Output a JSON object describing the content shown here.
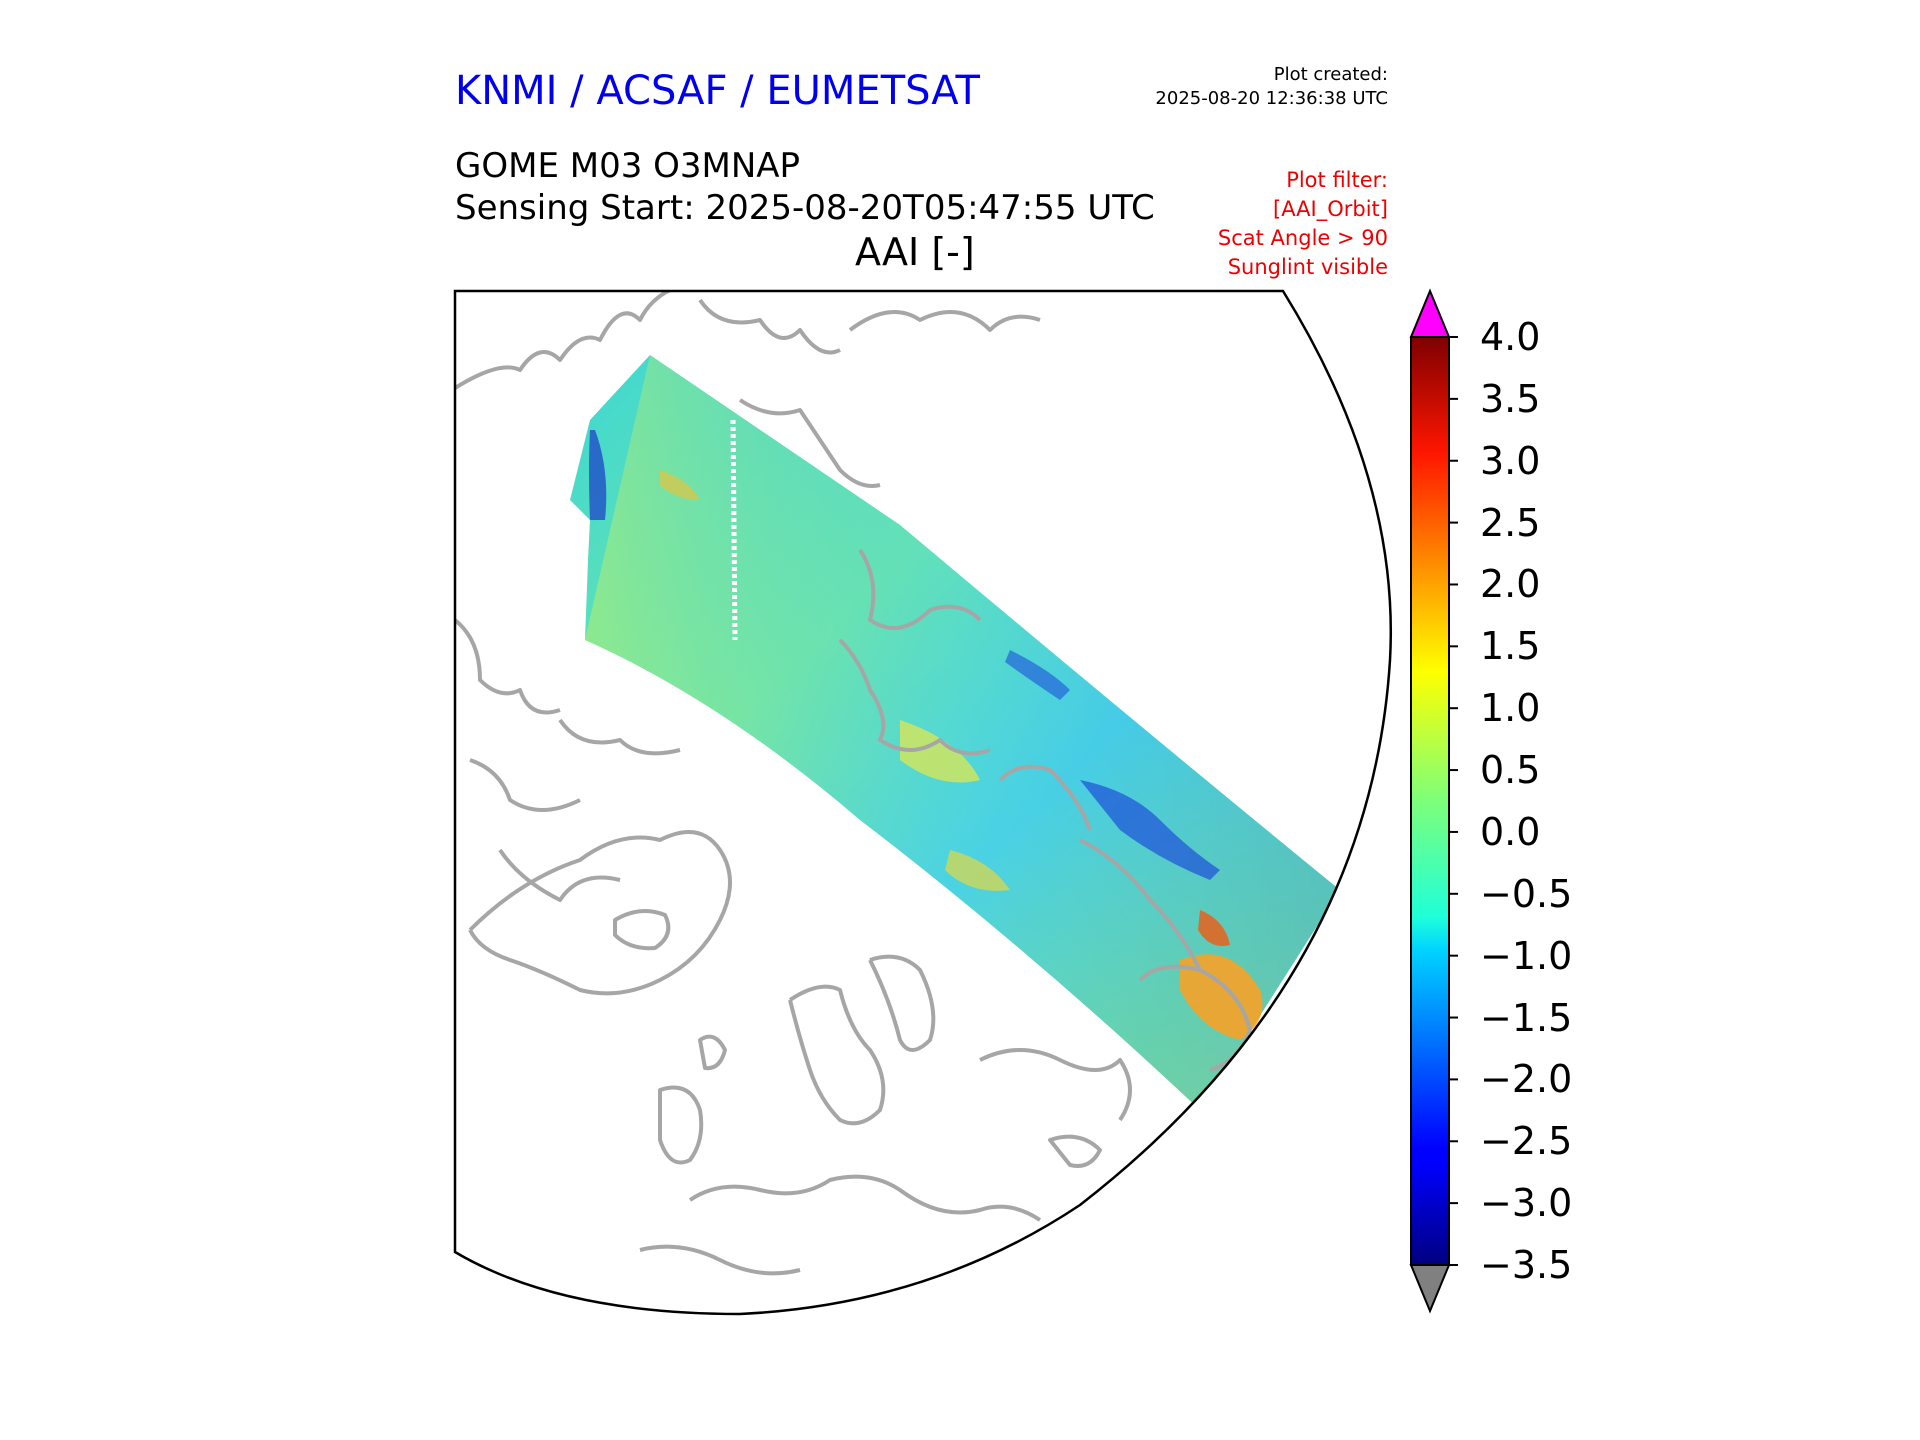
{
  "header": {
    "organization": "KNMI / ACSAF / EUMETSAT",
    "plot_created_label": "Plot created:",
    "plot_created_time": "2025-08-20 12:36:38 UTC",
    "product": "GOME M03 O3MNAP",
    "sensing_start": "Sensing Start: 2025-08-20T05:47:55 UTC",
    "variable": "AAI [-]",
    "filter_lines": [
      "Plot filter:",
      "[AAI_Orbit]",
      "Scat Angle > 90",
      "Sunglint visible"
    ]
  },
  "colors": {
    "header_org": "#0000ee",
    "filter_text": "#ee0000",
    "coastline": "#a6a6a6",
    "over_max": "#ff00ff",
    "under_min": "#808080"
  },
  "colorbar": {
    "colormap": "jet",
    "min": -3.5,
    "max": 4.0,
    "ticks": [
      "4.0",
      "3.5",
      "3.0",
      "2.5",
      "2.0",
      "1.5",
      "1.0",
      "0.5",
      "0.0",
      "−0.5",
      "−1.0",
      "−1.5",
      "−2.0",
      "−2.5",
      "−3.0",
      "−3.5"
    ],
    "extend": "both"
  },
  "map": {
    "projection": "polar stereographic (north)",
    "coastlines": true,
    "swath_value_range": "mostly −1.5 to 1.0, localized maxima near 2.5"
  }
}
